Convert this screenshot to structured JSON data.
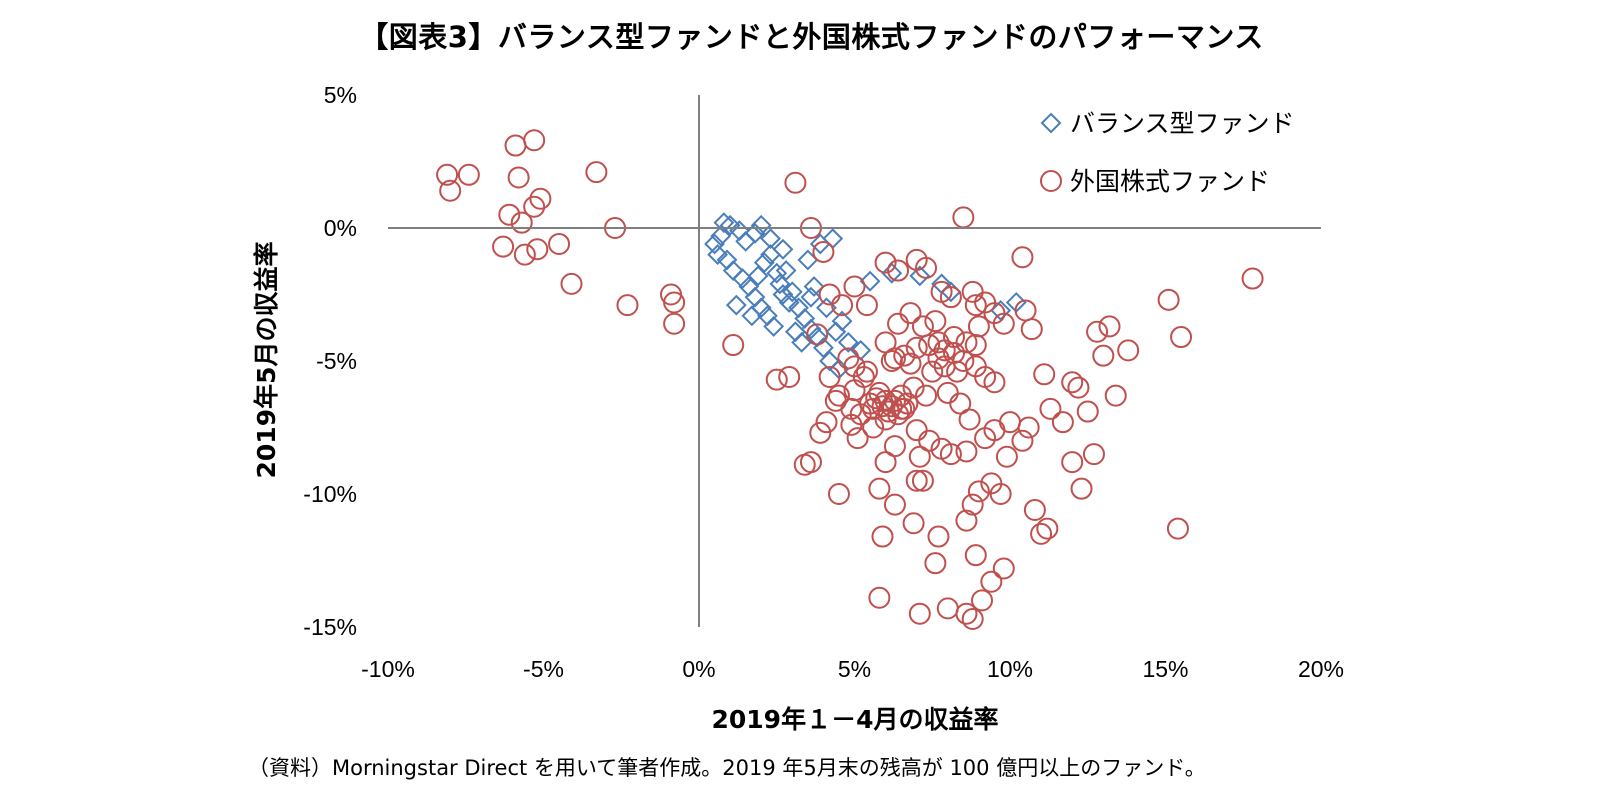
{
  "title": "【図表3】バランス型ファンドと外国株式ファンドのパフォーマンス",
  "source": "（資料）Morningstar Direct を用いて筆者作成。2019 年5月末の残高が 100 億円以上のファンド。",
  "colors": {
    "balanced": "#4a7ebb",
    "foreign": "#c0504d",
    "axis": "#7f7f7f"
  },
  "chart_data": {
    "type": "scatter",
    "xlabel": "2019年１－4月の収益率",
    "ylabel": "2019年5月の収益率",
    "xlim": [
      -10,
      20
    ],
    "ylim": [
      -15,
      5
    ],
    "x_ticks": [
      "-10%",
      "-5%",
      "0%",
      "5%",
      "10%",
      "15%",
      "20%"
    ],
    "y_ticks": [
      "5%",
      "0%",
      "-5%",
      "-10%",
      "-15%"
    ],
    "grid": false,
    "legend_position": "top-right",
    "series": [
      {
        "name": "バランス型ファンド",
        "marker": "diamond",
        "points": [
          [
            0.8,
            0.2
          ],
          [
            1.0,
            0.1
          ],
          [
            1.3,
            -0.1
          ],
          [
            1.8,
            -0.2
          ],
          [
            2.0,
            0.1
          ],
          [
            2.3,
            -0.4
          ],
          [
            2.7,
            -0.8
          ],
          [
            1.5,
            -0.5
          ],
          [
            0.5,
            -0.6
          ],
          [
            0.6,
            -1.0
          ],
          [
            0.9,
            -1.2
          ],
          [
            1.1,
            -1.6
          ],
          [
            1.4,
            -1.9
          ],
          [
            1.6,
            -2.2
          ],
          [
            1.8,
            -2.6
          ],
          [
            2.0,
            -3.0
          ],
          [
            2.2,
            -3.3
          ],
          [
            2.4,
            -3.7
          ],
          [
            2.6,
            -2.1
          ],
          [
            2.8,
            -1.6
          ],
          [
            3.0,
            -2.4
          ],
          [
            3.2,
            -3.0
          ],
          [
            3.4,
            -3.4
          ],
          [
            3.6,
            -3.8
          ],
          [
            3.8,
            -4.1
          ],
          [
            4.0,
            -4.5
          ],
          [
            4.2,
            -5.0
          ],
          [
            4.5,
            -5.3
          ],
          [
            4.8,
            -4.3
          ],
          [
            3.5,
            -1.2
          ],
          [
            3.9,
            -0.6
          ],
          [
            4.3,
            -0.4
          ],
          [
            2.1,
            -1.3
          ],
          [
            2.5,
            -1.7
          ],
          [
            2.9,
            -2.8
          ],
          [
            3.1,
            -3.9
          ],
          [
            3.3,
            -4.3
          ],
          [
            1.2,
            -2.9
          ],
          [
            1.7,
            -3.3
          ],
          [
            2.3,
            -1.0
          ],
          [
            1.9,
            -1.8
          ],
          [
            2.7,
            -2.5
          ],
          [
            3.6,
            -2.6
          ],
          [
            4.1,
            -3.0
          ],
          [
            4.6,
            -3.5
          ],
          [
            5.2,
            -4.6
          ],
          [
            6.2,
            -1.7
          ],
          [
            7.1,
            -1.8
          ],
          [
            7.8,
            -2.1
          ],
          [
            8.1,
            -2.4
          ],
          [
            9.7,
            -3.1
          ],
          [
            10.2,
            -2.8
          ],
          [
            5.5,
            -2.0
          ],
          [
            4.4,
            -3.9
          ],
          [
            3.7,
            -2.2
          ],
          [
            0.7,
            -0.3
          ]
        ]
      },
      {
        "name": "外国株式ファンド",
        "marker": "circle",
        "points": [
          [
            -5.9,
            3.1
          ],
          [
            -5.3,
            3.3
          ],
          [
            -8.1,
            2.0
          ],
          [
            -7.4,
            2.0
          ],
          [
            -8.0,
            1.4
          ],
          [
            -5.8,
            1.9
          ],
          [
            -3.3,
            2.1
          ],
          [
            -5.1,
            1.1
          ],
          [
            -5.3,
            0.8
          ],
          [
            -6.1,
            0.5
          ],
          [
            -5.7,
            0.2
          ],
          [
            -2.7,
            0.0
          ],
          [
            -6.3,
            -0.7
          ],
          [
            -5.2,
            -0.8
          ],
          [
            -4.5,
            -0.6
          ],
          [
            -5.6,
            -1.0
          ],
          [
            -4.1,
            -2.1
          ],
          [
            -2.3,
            -2.9
          ],
          [
            -0.9,
            -2.5
          ],
          [
            -0.8,
            -2.8
          ],
          [
            -0.8,
            -3.6
          ],
          [
            3.1,
            1.7
          ],
          [
            3.6,
            0.0
          ],
          [
            4.0,
            -0.9
          ],
          [
            8.5,
            0.4
          ],
          [
            10.4,
            -1.1
          ],
          [
            17.8,
            -1.9
          ],
          [
            15.1,
            -2.7
          ],
          [
            15.5,
            -4.1
          ],
          [
            1.1,
            -4.4
          ],
          [
            2.5,
            -5.7
          ],
          [
            2.9,
            -5.6
          ],
          [
            3.8,
            -4.0
          ],
          [
            4.2,
            -2.5
          ],
          [
            4.6,
            -2.9
          ],
          [
            5.0,
            -2.2
          ],
          [
            5.4,
            -2.9
          ],
          [
            6.0,
            -1.3
          ],
          [
            6.4,
            -1.6
          ],
          [
            7.0,
            -1.2
          ],
          [
            7.3,
            -1.5
          ],
          [
            7.8,
            -2.4
          ],
          [
            8.1,
            -2.6
          ],
          [
            8.8,
            -2.4
          ],
          [
            9.2,
            -2.8
          ],
          [
            9.5,
            -3.2
          ],
          [
            9.8,
            -3.6
          ],
          [
            10.5,
            -3.1
          ],
          [
            10.7,
            -3.8
          ],
          [
            11.1,
            -5.5
          ],
          [
            12.0,
            -5.8
          ],
          [
            12.2,
            -6.0
          ],
          [
            11.7,
            -7.3
          ],
          [
            11.3,
            -6.8
          ],
          [
            12.8,
            -3.9
          ],
          [
            13.2,
            -3.7
          ],
          [
            13.0,
            -4.8
          ],
          [
            13.8,
            -4.6
          ],
          [
            12.5,
            -6.9
          ],
          [
            13.4,
            -6.3
          ],
          [
            12.0,
            -8.8
          ],
          [
            12.7,
            -8.5
          ],
          [
            12.3,
            -9.8
          ],
          [
            10.8,
            -10.6
          ],
          [
            11.0,
            -11.5
          ],
          [
            11.2,
            -11.3
          ],
          [
            15.4,
            -11.3
          ],
          [
            9.4,
            -9.6
          ],
          [
            9.0,
            -9.9
          ],
          [
            9.7,
            -10.0
          ],
          [
            8.8,
            -10.4
          ],
          [
            8.6,
            -11.0
          ],
          [
            8.9,
            -12.3
          ],
          [
            9.4,
            -13.3
          ],
          [
            9.8,
            -12.8
          ],
          [
            9.1,
            -14.0
          ],
          [
            8.6,
            -14.5
          ],
          [
            8.8,
            -14.7
          ],
          [
            8.0,
            -14.3
          ],
          [
            7.1,
            -14.5
          ],
          [
            5.8,
            -13.9
          ],
          [
            7.6,
            -12.6
          ],
          [
            7.7,
            -11.6
          ],
          [
            6.9,
            -11.1
          ],
          [
            5.9,
            -11.6
          ],
          [
            6.3,
            -10.4
          ],
          [
            5.8,
            -9.8
          ],
          [
            4.5,
            -10.0
          ],
          [
            3.4,
            -8.9
          ],
          [
            3.6,
            -8.8
          ],
          [
            3.9,
            -7.7
          ],
          [
            4.1,
            -7.3
          ],
          [
            5.6,
            -7.5
          ],
          [
            6.0,
            -7.2
          ],
          [
            6.5,
            -6.8
          ],
          [
            7.0,
            -7.6
          ],
          [
            7.4,
            -8.0
          ],
          [
            7.8,
            -8.3
          ],
          [
            8.1,
            -8.5
          ],
          [
            8.6,
            -8.4
          ],
          [
            9.2,
            -7.9
          ],
          [
            9.5,
            -7.6
          ],
          [
            10.0,
            -7.3
          ],
          [
            10.4,
            -8.0
          ],
          [
            10.6,
            -7.5
          ],
          [
            9.9,
            -8.6
          ],
          [
            6.0,
            -8.8
          ],
          [
            6.3,
            -8.2
          ],
          [
            7.1,
            -8.6
          ],
          [
            7.2,
            -9.5
          ],
          [
            7.0,
            -9.5
          ],
          [
            4.5,
            -6.3
          ],
          [
            4.9,
            -6.8
          ],
          [
            5.2,
            -7.0
          ],
          [
            5.5,
            -6.6
          ],
          [
            5.7,
            -6.4
          ],
          [
            5.9,
            -6.7
          ],
          [
            6.1,
            -6.9
          ],
          [
            6.3,
            -6.5
          ],
          [
            6.5,
            -6.3
          ],
          [
            6.7,
            -6.6
          ],
          [
            5.8,
            -6.2
          ],
          [
            6.2,
            -6.7
          ],
          [
            6.4,
            -7.0
          ],
          [
            6.6,
            -6.8
          ],
          [
            6.0,
            -6.5
          ],
          [
            5.6,
            -6.8
          ],
          [
            5.0,
            -6.1
          ],
          [
            5.3,
            -5.6
          ],
          [
            5.0,
            -5.2
          ],
          [
            5.4,
            -5.4
          ],
          [
            6.2,
            -5.0
          ],
          [
            6.6,
            -4.8
          ],
          [
            7.0,
            -4.5
          ],
          [
            7.4,
            -4.4
          ],
          [
            7.7,
            -4.3
          ],
          [
            7.9,
            -4.6
          ],
          [
            8.2,
            -4.7
          ],
          [
            8.5,
            -5.0
          ],
          [
            8.9,
            -5.2
          ],
          [
            9.2,
            -5.6
          ],
          [
            9.5,
            -5.8
          ],
          [
            8.2,
            -4.1
          ],
          [
            8.6,
            -4.3
          ],
          [
            8.9,
            -4.4
          ],
          [
            7.2,
            -3.7
          ],
          [
            7.6,
            -3.5
          ],
          [
            6.8,
            -3.2
          ],
          [
            6.4,
            -3.6
          ],
          [
            6.0,
            -4.3
          ],
          [
            6.3,
            -4.9
          ],
          [
            6.8,
            -5.1
          ],
          [
            7.5,
            -5.4
          ],
          [
            7.9,
            -5.2
          ],
          [
            8.3,
            -5.4
          ],
          [
            7.7,
            -4.9
          ],
          [
            8.0,
            -6.2
          ],
          [
            8.4,
            -6.6
          ],
          [
            8.7,
            -7.2
          ],
          [
            7.3,
            -6.3
          ],
          [
            6.9,
            -6.0
          ],
          [
            4.2,
            -5.6
          ],
          [
            4.8,
            -4.9
          ],
          [
            4.4,
            -6.5
          ],
          [
            4.9,
            -7.4
          ],
          [
            5.1,
            -7.9
          ],
          [
            8.9,
            -2.9
          ],
          [
            9.0,
            -3.7
          ]
        ]
      }
    ]
  }
}
